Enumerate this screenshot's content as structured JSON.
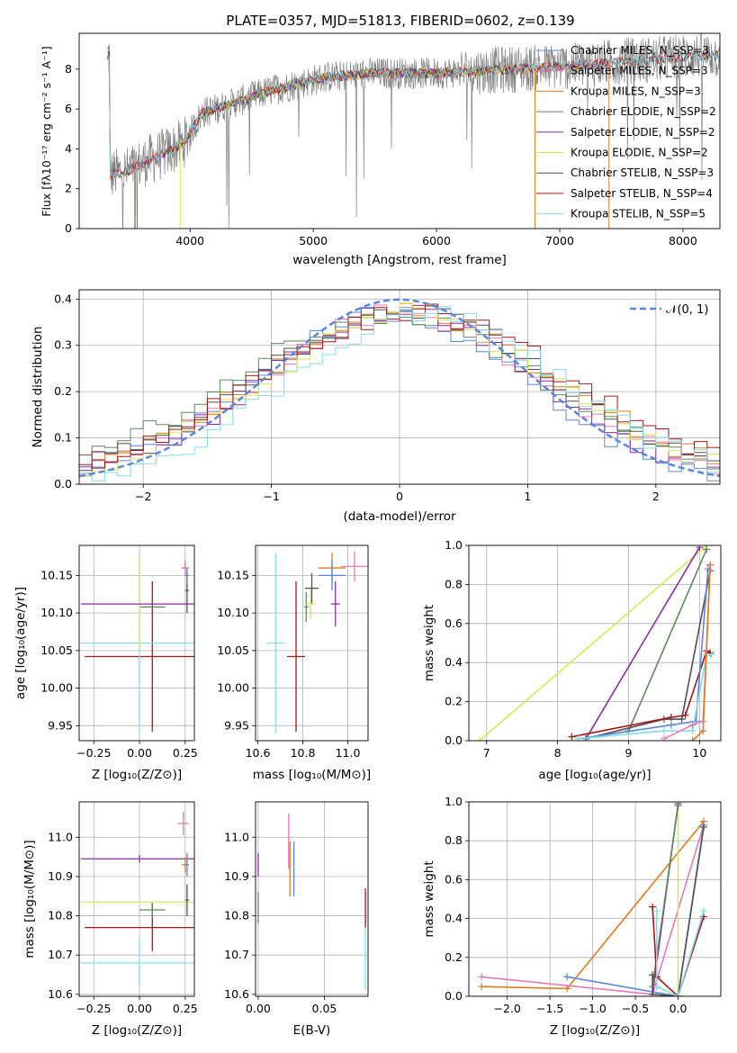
{
  "colors": {
    "chabrier_miles": "#5b87d9",
    "salpeter_miles": "#e87ab8",
    "kroupa_miles": "#e07b20",
    "chabrier_elodie": "#5c8a5c",
    "salpeter_elodie": "#8e2aa8",
    "kroupa_elodie": "#d4e85a",
    "chabrier_stelib": "#505050",
    "salpeter_stelib": "#a01818",
    "kroupa_stelib": "#86dce4",
    "observed": "#808080",
    "gaussian": "#5b87d9"
  },
  "chart_data": [
    {
      "id": "spectrum",
      "type": "line",
      "title": "PLATE=0357, MJD=51813, FIBERID=0602, z=0.139",
      "xlabel": "wavelength [Angstrom, rest frame]",
      "ylabel": "Flux [fλ10⁻¹⁷ erg cm⁻² s⁻¹ A⁻¹]",
      "xlim": [
        3100,
        8300
      ],
      "ylim": [
        0,
        9.8
      ],
      "xticks": [
        "4000",
        "5000",
        "6000",
        "7000",
        "8000"
      ],
      "yticks": [
        "0",
        "2",
        "4",
        "6",
        "8"
      ],
      "legend_position": "top-right",
      "continuum": {
        "x": [
          3350,
          3500,
          3650,
          3800,
          3950,
          4100,
          4300,
          4500,
          4700,
          4900,
          5100,
          5300,
          5500,
          5800,
          6000,
          6300,
          6600,
          6900,
          7200,
          7500,
          7800,
          8100
        ],
        "y": [
          2.7,
          2.9,
          3.4,
          3.8,
          4.3,
          5.8,
          6.2,
          6.6,
          7.0,
          7.3,
          7.6,
          7.7,
          7.8,
          7.8,
          7.8,
          7.9,
          8.0,
          8.1,
          8.2,
          8.4,
          8.5,
          8.7
        ]
      },
      "series": [
        {
          "name": "Chabrier MILES, N_SSP=3",
          "color_key": "chabrier_miles",
          "range": [
            3330,
            7400
          ]
        },
        {
          "name": "Salpeter MILES, N_SSP=3",
          "color_key": "salpeter_miles",
          "range": [
            3330,
            7400
          ]
        },
        {
          "name": "Kroupa MILES, N_SSP=3",
          "color_key": "kroupa_miles",
          "range": [
            3330,
            7400
          ]
        },
        {
          "name": "Chabrier ELODIE, N_SSP=2",
          "color_key": "chabrier_elodie",
          "range": [
            3900,
            6800
          ]
        },
        {
          "name": "Salpeter ELODIE, N_SSP=2",
          "color_key": "salpeter_elodie",
          "range": [
            3900,
            6800
          ]
        },
        {
          "name": "Kroupa ELODIE, N_SSP=2",
          "color_key": "kroupa_elodie",
          "range": [
            3900,
            6800
          ]
        },
        {
          "name": "Chabrier STELIB, N_SSP=3",
          "color_key": "chabrier_stelib",
          "range": [
            3330,
            8300
          ]
        },
        {
          "name": "Salpeter STELIB, N_SSP=4",
          "color_key": "salpeter_stelib",
          "range": [
            3330,
            8300
          ]
        },
        {
          "name": "Kroupa STELIB, N_SSP=5",
          "color_key": "kroupa_stelib",
          "range": [
            3330,
            8300
          ]
        }
      ]
    },
    {
      "id": "residuals",
      "type": "line",
      "xlabel": "(data-model)/error",
      "ylabel": "Normed distribution",
      "xlim": [
        -2.5,
        2.5
      ],
      "ylim": [
        0,
        0.42
      ],
      "xticks": [
        "−2",
        "−1",
        "0",
        "1",
        "2"
      ],
      "xtick_values": [
        -2,
        -1,
        0,
        1,
        2
      ],
      "yticks": [
        "0.0",
        "0.1",
        "0.2",
        "0.3",
        "0.4"
      ],
      "legend_label": "𝒩(0, 1)",
      "legend_position": "top-right",
      "grid": true
    },
    {
      "id": "age_vs_Z",
      "type": "scatter",
      "xlabel": "Z [log₁₀(Z/Z⊙)]",
      "ylabel": "age  [log₁₀(age/yr)]",
      "xlim": [
        -0.33,
        0.3
      ],
      "ylim": [
        9.93,
        10.19
      ],
      "xticks": [
        "−0.25",
        "0.00",
        "0.25"
      ],
      "xtick_values": [
        -0.25,
        0,
        0.25
      ],
      "yticks": [
        "9.95",
        "10.00",
        "10.05",
        "10.10",
        "10.15"
      ],
      "ytick_values": [
        9.95,
        10.0,
        10.05,
        10.1,
        10.15
      ],
      "points": [
        {
          "c": "salpeter_stelib",
          "x": 0.07,
          "y": 10.042,
          "xe": 0.37,
          "ye": 0.1
        },
        {
          "c": "kroupa_stelib",
          "x": 0.0,
          "y": 10.06,
          "xe": 0.32,
          "ye": 0.12
        },
        {
          "c": "chabrier_elodie",
          "x": 0.07,
          "y": 10.108,
          "xe": 0.07,
          "ye": 0.0
        },
        {
          "c": "kroupa_elodie",
          "x": 0.0,
          "y": 10.115,
          "xe": 0.0,
          "ye": 0.06
        },
        {
          "c": "salpeter_elodie",
          "x": 0.0,
          "y": 10.112,
          "xe": 0.32,
          "ye": 0.0
        },
        {
          "c": "chabrier_stelib",
          "x": 0.26,
          "y": 10.13,
          "xe": 0.01,
          "ye": 0.03
        },
        {
          "c": "kroupa_miles",
          "x": 0.25,
          "y": 10.16,
          "xe": 0.02,
          "ye": 0.01
        },
        {
          "c": "salpeter_miles",
          "x": 0.25,
          "y": 10.16,
          "xe": 0.02,
          "ye": 0.01
        },
        {
          "c": "chabrier_miles",
          "x": 0.26,
          "y": 10.15,
          "xe": 0.01,
          "ye": 0.01
        }
      ]
    },
    {
      "id": "age_vs_mass",
      "type": "scatter",
      "xlabel": "mass [log₁₀(M/M⊙)]",
      "xlim": [
        10.59,
        11.09
      ],
      "ylim": [
        9.93,
        10.19
      ],
      "xticks": [
        "10.6",
        "10.8",
        "11.0"
      ],
      "xtick_values": [
        10.6,
        10.8,
        11.0
      ],
      "yticks": [
        "9.95",
        "10.00",
        "10.05",
        "10.10",
        "10.15"
      ],
      "ytick_values": [
        9.95,
        10.0,
        10.05,
        10.1,
        10.15
      ],
      "points": [
        {
          "c": "salpeter_stelib",
          "x": 10.77,
          "y": 10.042,
          "xe": 0.04,
          "ye": 0.1
        },
        {
          "c": "kroupa_stelib",
          "x": 10.68,
          "y": 10.06,
          "xe": 0.04,
          "ye": 0.12
        },
        {
          "c": "chabrier_elodie",
          "x": 10.815,
          "y": 10.108,
          "xe": 0.01,
          "ye": 0.02
        },
        {
          "c": "kroupa_elodie",
          "x": 10.835,
          "y": 10.112,
          "xe": 0.02,
          "ye": 0.02
        },
        {
          "c": "salpeter_elodie",
          "x": 10.945,
          "y": 10.112,
          "xe": 0.02,
          "ye": 0.03
        },
        {
          "c": "chabrier_stelib",
          "x": 10.84,
          "y": 10.133,
          "xe": 0.03,
          "ye": 0.02
        },
        {
          "c": "kroupa_miles",
          "x": 10.93,
          "y": 10.16,
          "xe": 0.06,
          "ye": 0.02
        },
        {
          "c": "salpeter_miles",
          "x": 11.03,
          "y": 10.162,
          "xe": 0.06,
          "ye": 0.02
        },
        {
          "c": "chabrier_miles",
          "x": 10.93,
          "y": 10.15,
          "xe": 0.06,
          "ye": 0.02
        }
      ]
    },
    {
      "id": "weight_vs_age",
      "type": "line",
      "xlabel": "age  [log₁₀(age/yr)]",
      "ylabel": "mass weight",
      "xlim": [
        6.75,
        10.3
      ],
      "ylim": [
        0,
        1.0
      ],
      "xticks": [
        "7",
        "8",
        "9",
        "10"
      ],
      "xtick_values": [
        7,
        8,
        9,
        10
      ],
      "yticks": [
        "0.0",
        "0.2",
        "0.4",
        "0.6",
        "0.8",
        "1.0"
      ],
      "ytick_values": [
        0,
        0.2,
        0.4,
        0.6,
        0.8,
        1.0
      ],
      "series": [
        {
          "c": "kroupa_elodie",
          "x": [
            6.9,
            10.1
          ],
          "y": [
            0.0,
            1.0
          ]
        },
        {
          "c": "salpeter_elodie",
          "x": [
            8.4,
            10.0
          ],
          "y": [
            0.01,
            0.99
          ]
        },
        {
          "c": "chabrier_elodie",
          "x": [
            9.0,
            10.1
          ],
          "y": [
            0.05,
            0.98
          ]
        },
        {
          "c": "chabrier_stelib",
          "x": [
            8.4,
            9.5,
            9.75,
            10.15
          ],
          "y": [
            0.01,
            0.11,
            0.11,
            0.87
          ]
        },
        {
          "c": "salpeter_stelib",
          "x": [
            8.2,
            9.6,
            9.8,
            10.1,
            10.15
          ],
          "y": [
            0.02,
            0.12,
            0.13,
            0.46,
            0.45
          ]
        },
        {
          "c": "chabrier_miles",
          "x": [
            8.3,
            9.6,
            9.95,
            10.12
          ],
          "y": [
            0.01,
            0.08,
            0.1,
            0.88
          ]
        },
        {
          "c": "kroupa_stelib",
          "x": [
            8.3,
            9.5,
            9.9,
            10.1,
            10.17
          ],
          "y": [
            0.01,
            0.05,
            0.05,
            0.44,
            0.44
          ]
        },
        {
          "c": "salpeter_miles",
          "x": [
            9.5,
            9.9,
            10.05,
            10.15
          ],
          "y": [
            0.01,
            0.08,
            0.1,
            0.9
          ]
        },
        {
          "c": "kroupa_miles",
          "x": [
            9.9,
            10.05,
            10.15
          ],
          "y": [
            0.0,
            0.05,
            0.9
          ]
        }
      ]
    },
    {
      "id": "mass_vs_Z",
      "type": "scatter",
      "xlabel": "Z [log₁₀(Z/Z⊙)]",
      "ylabel": "mass [log₁₀(M/M⊙)]",
      "xlim": [
        -0.33,
        0.3
      ],
      "ylim": [
        10.595,
        11.09
      ],
      "xticks": [
        "−0.25",
        "0.00",
        "0.25"
      ],
      "xtick_values": [
        -0.25,
        0,
        0.25
      ],
      "yticks": [
        "10.6",
        "10.7",
        "10.8",
        "10.9",
        "11.0"
      ],
      "ytick_values": [
        10.6,
        10.7,
        10.8,
        10.9,
        11.0
      ],
      "points": [
        {
          "c": "salpeter_stelib",
          "x": 0.07,
          "y": 10.77,
          "xe": 0.37,
          "ye": 0.06
        },
        {
          "c": "kroupa_stelib",
          "x": 0.0,
          "y": 10.68,
          "xe": 0.32,
          "ye": 0.06
        },
        {
          "c": "chabrier_elodie",
          "x": 0.07,
          "y": 10.815,
          "xe": 0.07,
          "ye": 0.02
        },
        {
          "c": "kroupa_elodie",
          "x": 0.0,
          "y": 10.835,
          "xe": 0.32,
          "ye": 0.0
        },
        {
          "c": "salpeter_elodie",
          "x": 0.0,
          "y": 10.945,
          "xe": 0.32,
          "ye": 0.01
        },
        {
          "c": "chabrier_stelib",
          "x": 0.26,
          "y": 10.84,
          "xe": 0.01,
          "ye": 0.04
        },
        {
          "c": "kroupa_miles",
          "x": 0.25,
          "y": 10.93,
          "xe": 0.02,
          "ye": 0.02
        },
        {
          "c": "salpeter_miles",
          "x": 0.24,
          "y": 11.035,
          "xe": 0.03,
          "ye": 0.03
        },
        {
          "c": "chabrier_miles",
          "x": 0.26,
          "y": 10.93,
          "xe": 0.01,
          "ye": 0.03
        }
      ]
    },
    {
      "id": "mass_vs_ebv",
      "type": "scatter",
      "xlabel": "E(B-V)",
      "xlim": [
        -0.002,
        0.083
      ],
      "ylim": [
        10.595,
        11.09
      ],
      "xticks": [
        "0.00",
        "0.05"
      ],
      "xtick_values": [
        0,
        0.05
      ],
      "yticks": [
        "10.6",
        "10.7",
        "10.8",
        "10.9",
        "11.0"
      ],
      "ytick_values": [
        10.6,
        10.7,
        10.8,
        10.9,
        11.0
      ],
      "points": [
        {
          "c": "salpeter_elodie",
          "x": 0.0,
          "y": 10.93,
          "xe": 0,
          "ye": 0.03
        },
        {
          "c": "chabrier_elodie",
          "x": 0.0,
          "y": 10.82,
          "xe": 0,
          "ye": 0.04
        },
        {
          "c": "salpeter_miles",
          "x": 0.023,
          "y": 10.99,
          "xe": 0,
          "ye": 0.07
        },
        {
          "c": "kroupa_miles",
          "x": 0.024,
          "y": 10.92,
          "xe": 0,
          "ye": 0.07
        },
        {
          "c": "chabrier_miles",
          "x": 0.027,
          "y": 10.92,
          "xe": 0,
          "ye": 0.07
        },
        {
          "c": "salpeter_stelib",
          "x": 0.081,
          "y": 10.82,
          "xe": 0,
          "ye": 0.05
        },
        {
          "c": "kroupa_stelib",
          "x": 0.081,
          "y": 10.69,
          "xe": 0,
          "ye": 0.08
        }
      ]
    },
    {
      "id": "weight_vs_Z",
      "type": "line",
      "xlabel": "Z [log₁₀(Z/Z⊙)]",
      "ylabel": "mass weight",
      "xlim": [
        -2.45,
        0.5
      ],
      "ylim": [
        0,
        1.0
      ],
      "xticks": [
        "−2.0",
        "−1.5",
        "−1.0",
        "−0.5",
        "0.0"
      ],
      "xtick_values": [
        -2.0,
        -1.5,
        -1.0,
        -0.5,
        0.0
      ],
      "yticks": [
        "0.0",
        "0.2",
        "0.4",
        "0.6",
        "0.8",
        "1.0"
      ],
      "ytick_values": [
        0,
        0.2,
        0.4,
        0.6,
        0.8,
        1.0
      ],
      "series": [
        {
          "c": "kroupa_miles",
          "x": [
            -2.3,
            -1.3,
            0.3
          ],
          "y": [
            0.05,
            0.04,
            0.9
          ]
        },
        {
          "c": "salpeter_miles",
          "x": [
            -2.3,
            -0.3,
            0.3
          ],
          "y": [
            0.1,
            0.01,
            0.88
          ]
        },
        {
          "c": "chabrier_miles",
          "x": [
            -1.3,
            0.0,
            0.3
          ],
          "y": [
            0.1,
            0.0,
            0.88
          ]
        },
        {
          "c": "kroupa_elodie",
          "x": [
            0.0,
            0.0
          ],
          "y": [
            0.0,
            1.0
          ]
        },
        {
          "c": "salpeter_elodie",
          "x": [
            -0.3,
            0.0
          ],
          "y": [
            0.01,
            0.99
          ]
        },
        {
          "c": "chabrier_elodie",
          "x": [
            -0.3,
            0.0
          ],
          "y": [
            0.05,
            0.98
          ]
        },
        {
          "c": "chabrier_stelib",
          "x": [
            -0.3,
            -0.3,
            0.0,
            0.3
          ],
          "y": [
            0.11,
            0.01,
            0.0,
            0.87
          ]
        },
        {
          "c": "salpeter_stelib",
          "x": [
            -0.3,
            -0.25,
            0.0,
            0.3
          ],
          "y": [
            0.46,
            0.1,
            0.0,
            0.41
          ]
        },
        {
          "c": "kroupa_stelib",
          "x": [
            -0.25,
            -0.25,
            0.0,
            0.3
          ],
          "y": [
            0.44,
            0.05,
            0.0,
            0.44
          ]
        }
      ]
    }
  ]
}
